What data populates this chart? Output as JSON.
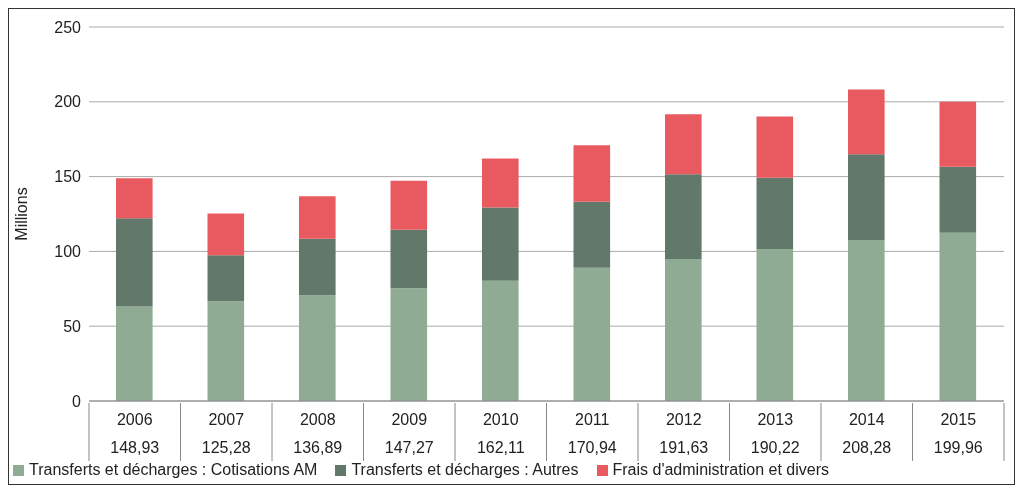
{
  "chart_data": {
    "type": "bar",
    "stacked": true,
    "ylabel": "Millions",
    "categories": [
      "2006",
      "2007",
      "2008",
      "2009",
      "2010",
      "2011",
      "2012",
      "2013",
      "2014",
      "2015"
    ],
    "series": [
      {
        "name": "Transferts et décharges : Cotisations AM",
        "color": "#8fab94",
        "values": [
          63.2,
          66.7,
          70.7,
          75.4,
          80.3,
          89.0,
          95.0,
          101.6,
          107.7,
          112.4
        ]
      },
      {
        "name": "Transferts et décharges : Autres",
        "color": "#62786a",
        "values": [
          59.0,
          30.7,
          37.7,
          39.1,
          49.1,
          44.2,
          56.5,
          47.7,
          57.3,
          44.2
        ]
      },
      {
        "name": "Frais d'administration et divers",
        "color": "#e85a60",
        "values": [
          26.73,
          27.88,
          28.49,
          32.77,
          32.71,
          37.74,
          40.13,
          40.92,
          43.28,
          43.36
        ]
      }
    ],
    "totals": [
      "148,93",
      "125,28",
      "136,89",
      "147,27",
      "162,11",
      "170,94",
      "191,63",
      "190,22",
      "208,28",
      "199,96"
    ],
    "ylim": [
      0,
      250
    ],
    "yticks": [
      0,
      50,
      100,
      150,
      200,
      250
    ],
    "grid": "y",
    "legend": "bottom"
  }
}
